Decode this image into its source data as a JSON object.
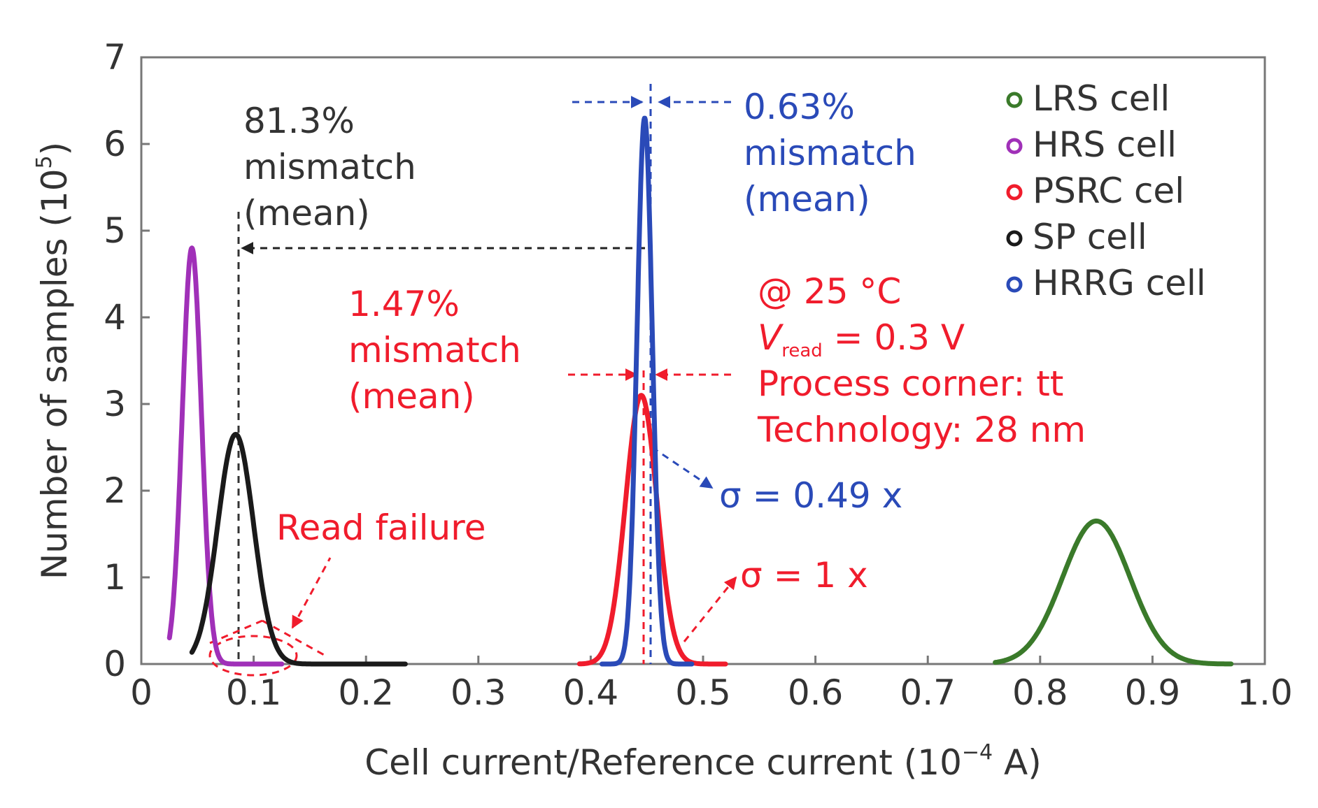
{
  "chart_data": {
    "type": "line",
    "xlabel": "Cell current/Reference current (10",
    "xlabel_exp": "−4",
    "xlabel_tail": " A)",
    "ylabel": "Number of samples (10",
    "ylabel_exp": "5",
    "ylabel_tail": ")",
    "xlim": [
      0,
      1.0
    ],
    "ylim": [
      0,
      7
    ],
    "xticks": [
      0,
      0.1,
      0.2,
      0.3,
      0.4,
      0.5,
      0.6,
      0.7,
      0.8,
      0.9,
      1.0
    ],
    "xtick_labels": [
      "0",
      "0.1",
      "0.2",
      "0.3",
      "0.4",
      "0.5",
      "0.6",
      "0.7",
      "0.8",
      "0.9",
      "1.0"
    ],
    "yticks": [
      0,
      1,
      2,
      3,
      4,
      5,
      6,
      7
    ],
    "ytick_labels": [
      "0",
      "1",
      "2",
      "3",
      "4",
      "5",
      "6",
      "7"
    ],
    "series": [
      {
        "name": "LRS cell",
        "color": "#3a7a2a",
        "mean": 0.85,
        "sigma": 0.03,
        "peak": 1.65,
        "range": [
          0.76,
          0.97
        ]
      },
      {
        "name": "HRS cell",
        "color": "#a030b8",
        "mean": 0.045,
        "sigma": 0.0085,
        "peak": 4.8,
        "range": [
          0.025,
          0.125
        ]
      },
      {
        "name": "PSRC cel",
        "color": "#f01c2c",
        "mean": 0.445,
        "sigma": 0.014,
        "peak": 3.1,
        "range": [
          0.39,
          0.52
        ]
      },
      {
        "name": "SP cell",
        "color": "#1a1a1a",
        "mean": 0.084,
        "sigma": 0.016,
        "peak": 2.65,
        "range": [
          0.045,
          0.235
        ]
      },
      {
        "name": "HRRG cell",
        "color": "#2a4ab8",
        "mean": 0.448,
        "sigma": 0.0068,
        "peak": 6.3,
        "range": [
          0.41,
          0.49
        ]
      }
    ],
    "legend": {
      "position": "top-right",
      "items": [
        {
          "label": "LRS cell",
          "color": "#3a7a2a"
        },
        {
          "label": "HRS cell",
          "color": "#a030b8"
        },
        {
          "label": "PSRC cel",
          "color": "#f01c2c"
        },
        {
          "label": "SP cell",
          "color": "#1a1a1a"
        },
        {
          "label": "HRRG cell",
          "color": "#2a4ab8"
        }
      ]
    },
    "annotations": {
      "black": {
        "line1": "81.3%",
        "line2": "mismatch",
        "line3": "(mean)",
        "color": "#333333"
      },
      "blue": {
        "line1": "0.63%",
        "line2": "mismatch",
        "line3": "(mean)",
        "color": "#2a4ab8"
      },
      "red": {
        "line1": "1.47%",
        "line2": "mismatch",
        "line3": "(mean)",
        "color": "#f01c2c"
      },
      "conditions": {
        "line1": "@ 25 °C",
        "v_main": "V",
        "v_sub": "read",
        "v_tail": " = 0.3 V",
        "line3": "Process corner: tt",
        "line4": "Technology: 28 nm",
        "color": "#f01c2c"
      },
      "sigma_blue": {
        "text": "σ = 0.49 x",
        "color": "#2a4ab8"
      },
      "sigma_red": {
        "text": "σ = 1 x",
        "color": "#f01c2c"
      },
      "read_failure": {
        "text": "Read failure",
        "color": "#f01c2c"
      }
    }
  }
}
